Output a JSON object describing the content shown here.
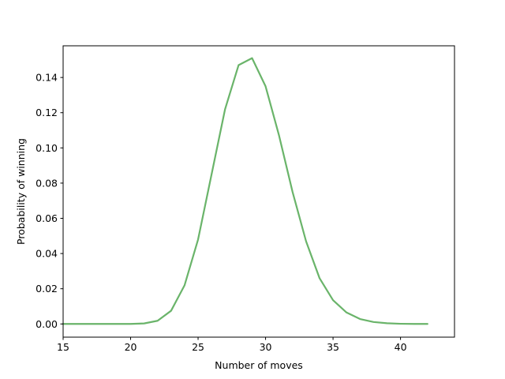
{
  "chart_data": {
    "type": "line",
    "title": "",
    "xlabel": "Number of moves",
    "ylabel": "Probability of winning",
    "xlim": [
      15,
      44
    ],
    "ylim": [
      -0.0075,
      0.158
    ],
    "x_ticks": [
      15,
      20,
      25,
      30,
      35,
      40
    ],
    "y_ticks": [
      0.0,
      0.02,
      0.04,
      0.06,
      0.08,
      0.1,
      0.12,
      0.14
    ],
    "y_tick_decimals": 2,
    "grid": false,
    "legend": "none",
    "series": [
      {
        "color": "#6ab46a",
        "x": [
          15,
          16,
          17,
          18,
          19,
          20,
          21,
          22,
          23,
          24,
          25,
          26,
          27,
          28,
          29,
          30,
          31,
          32,
          33,
          34,
          35,
          36,
          37,
          38,
          39,
          40,
          41,
          42
        ],
        "y": [
          0.0,
          0.0,
          0.0,
          0.0,
          0.0,
          0.0,
          0.0003,
          0.0018,
          0.0075,
          0.022,
          0.048,
          0.085,
          0.122,
          0.147,
          0.151,
          0.135,
          0.107,
          0.075,
          0.047,
          0.026,
          0.0135,
          0.0065,
          0.0028,
          0.0011,
          0.0004,
          0.0001,
          0.0,
          0.0
        ]
      }
    ]
  }
}
